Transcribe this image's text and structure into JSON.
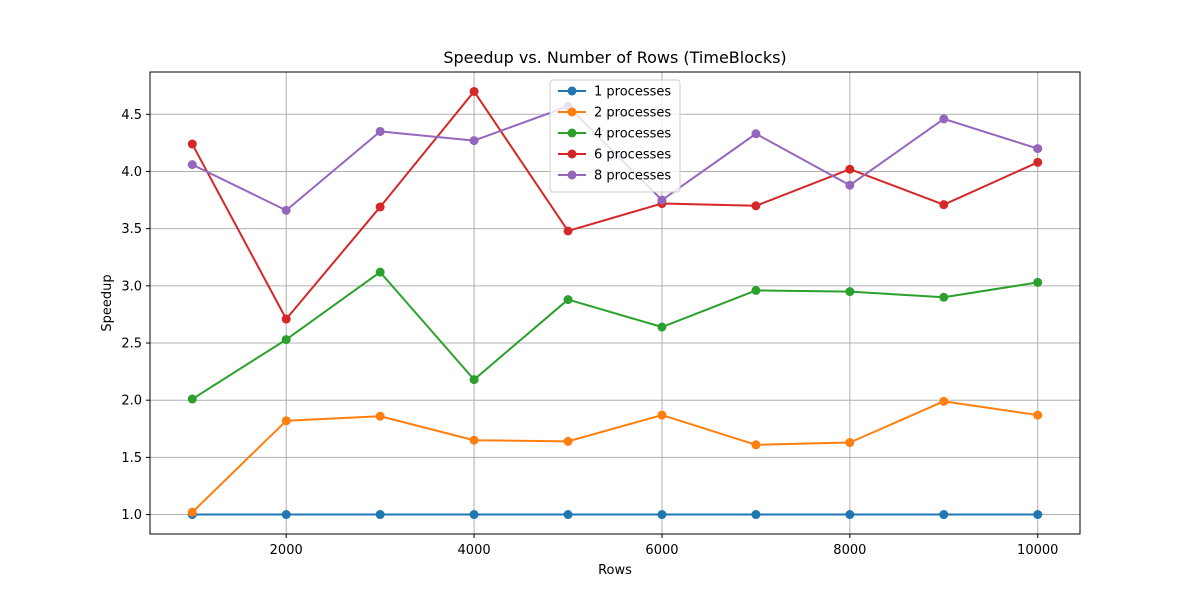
{
  "chart_data": {
    "type": "line",
    "title": "Speedup vs. Number of Rows (TimeBlocks)",
    "xlabel": "Rows",
    "ylabel": "Speedup",
    "x": [
      1000,
      2000,
      3000,
      4000,
      5000,
      6000,
      7000,
      8000,
      9000,
      10000
    ],
    "xlim": [
      550,
      10450
    ],
    "ylim": [
      0.83,
      4.87
    ],
    "xticks": [
      2000,
      4000,
      6000,
      8000,
      10000
    ],
    "yticks": [
      1.0,
      1.5,
      2.0,
      2.5,
      3.0,
      3.5,
      4.0,
      4.5
    ],
    "grid": true,
    "legend_position": "top-center",
    "series": [
      {
        "name": "1 processes",
        "color": "#1f77b4",
        "values": [
          1.0,
          1.0,
          1.0,
          1.0,
          1.0,
          1.0,
          1.0,
          1.0,
          1.0,
          1.0
        ]
      },
      {
        "name": "2 processes",
        "color": "#ff7f0e",
        "values": [
          1.02,
          1.82,
          1.86,
          1.65,
          1.64,
          1.87,
          1.61,
          1.63,
          1.99,
          1.87
        ]
      },
      {
        "name": "4 processes",
        "color": "#2ca02c",
        "values": [
          2.01,
          2.53,
          3.12,
          2.18,
          2.88,
          2.64,
          2.96,
          2.95,
          2.9,
          3.03
        ]
      },
      {
        "name": "6 processes",
        "color": "#d62728",
        "values": [
          4.24,
          2.71,
          3.69,
          4.7,
          3.48,
          3.72,
          3.7,
          4.02,
          3.71,
          4.08
        ]
      },
      {
        "name": "8 processes",
        "color": "#9467bd",
        "values": [
          4.06,
          3.66,
          4.35,
          4.27,
          4.57,
          3.75,
          4.33,
          3.88,
          4.46,
          4.2
        ]
      }
    ]
  }
}
